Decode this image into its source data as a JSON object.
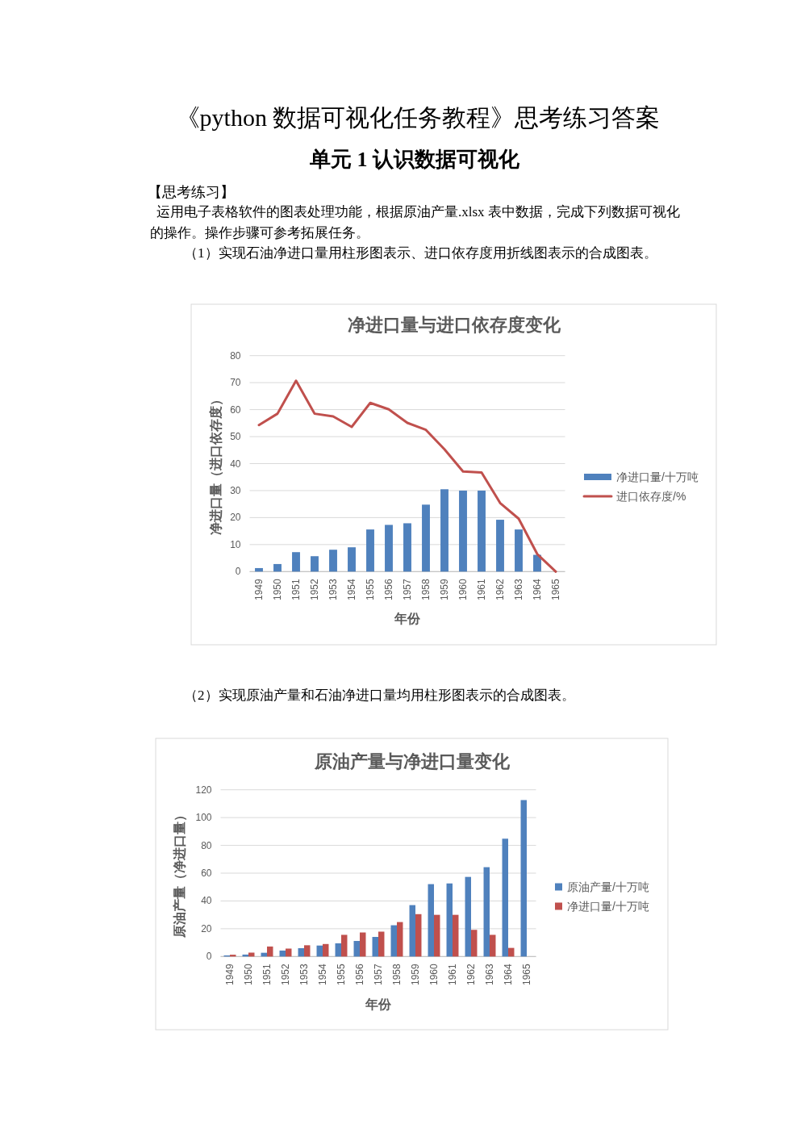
{
  "chart_data": [
    {
      "type": "bar",
      "title": "净进口量与进口依存度变化",
      "xlabel": "年份",
      "ylabel": "净进口量（进口依存度）",
      "categories": [
        "1949",
        "1950",
        "1951",
        "1952",
        "1953",
        "1954",
        "1955",
        "1956",
        "1957",
        "1958",
        "1959",
        "1960",
        "1961",
        "1962",
        "1963",
        "1964",
        "1965"
      ],
      "series": [
        {
          "name": "净进口量/十万吨",
          "color": "#4f81bd",
          "values": [
            1.3,
            2.8,
            7.2,
            5.7,
            8.1,
            9.0,
            15.6,
            17.3,
            17.9,
            24.8,
            30.5,
            30.0,
            30.0,
            19.2,
            15.6,
            6.2,
            0
          ]
        },
        {
          "name": "进口依存度/%",
          "type": "line",
          "color": "#c0504d",
          "values": [
            54.3,
            58.5,
            70.7,
            58.5,
            57.5,
            53.6,
            62.5,
            60.1,
            55.1,
            52.5,
            45.3,
            37.1,
            36.7,
            25.4,
            19.6,
            6.5,
            0
          ]
        }
      ],
      "ylim": [
        0,
        80
      ],
      "yticks": [
        0,
        10,
        20,
        30,
        40,
        50,
        60,
        70,
        80
      ],
      "grid": "y",
      "legend": "right",
      "annotations": [
        "《python 数据可视化任务教程》思考练习答案",
        "单元 1  认识数据可视化",
        "【思考练习】",
        "运用电子表格软件的图表处理功能，根据原油产量.xlsx 表中数据，完成下列数据可视化的操作。操作步骤可参考拓展任务。",
        "（1）实现石油净进口量用柱形图表示、进口依存度用折线图表示的合成图表。"
      ]
    },
    {
      "type": "bar",
      "title": "原油产量与净进口量变化",
      "xlabel": "年份",
      "ylabel": "原油产量（净进口量）",
      "categories": [
        "1949",
        "1950",
        "1951",
        "1952",
        "1953",
        "1954",
        "1955",
        "1956",
        "1957",
        "1958",
        "1959",
        "1960",
        "1961",
        "1962",
        "1963",
        "1964",
        "1965"
      ],
      "series": [
        {
          "name": "原油产量/十万吨",
          "color": "#4f81bd",
          "values": [
            0.8,
            1.4,
            2.7,
            4.3,
            6.0,
            7.9,
            9.5,
            11.2,
            14.1,
            22.5,
            37.0,
            52.1,
            52.6,
            57.3,
            64.3,
            84.8,
            112.6
          ]
        },
        {
          "name": "净进口量/十万吨",
          "color": "#c0504d",
          "values": [
            1.3,
            2.8,
            7.2,
            5.7,
            8.1,
            9.0,
            15.6,
            17.3,
            17.9,
            24.8,
            30.5,
            30.0,
            30.0,
            19.2,
            15.6,
            6.2,
            0
          ]
        }
      ],
      "ylim": [
        0,
        120
      ],
      "yticks": [
        0,
        20,
        40,
        60,
        80,
        100,
        120
      ],
      "grid": "y",
      "legend": "right",
      "annotations": [
        "（2）实现原油产量和石油净进口量均用柱形图表示的合成图表。"
      ]
    }
  ]
}
